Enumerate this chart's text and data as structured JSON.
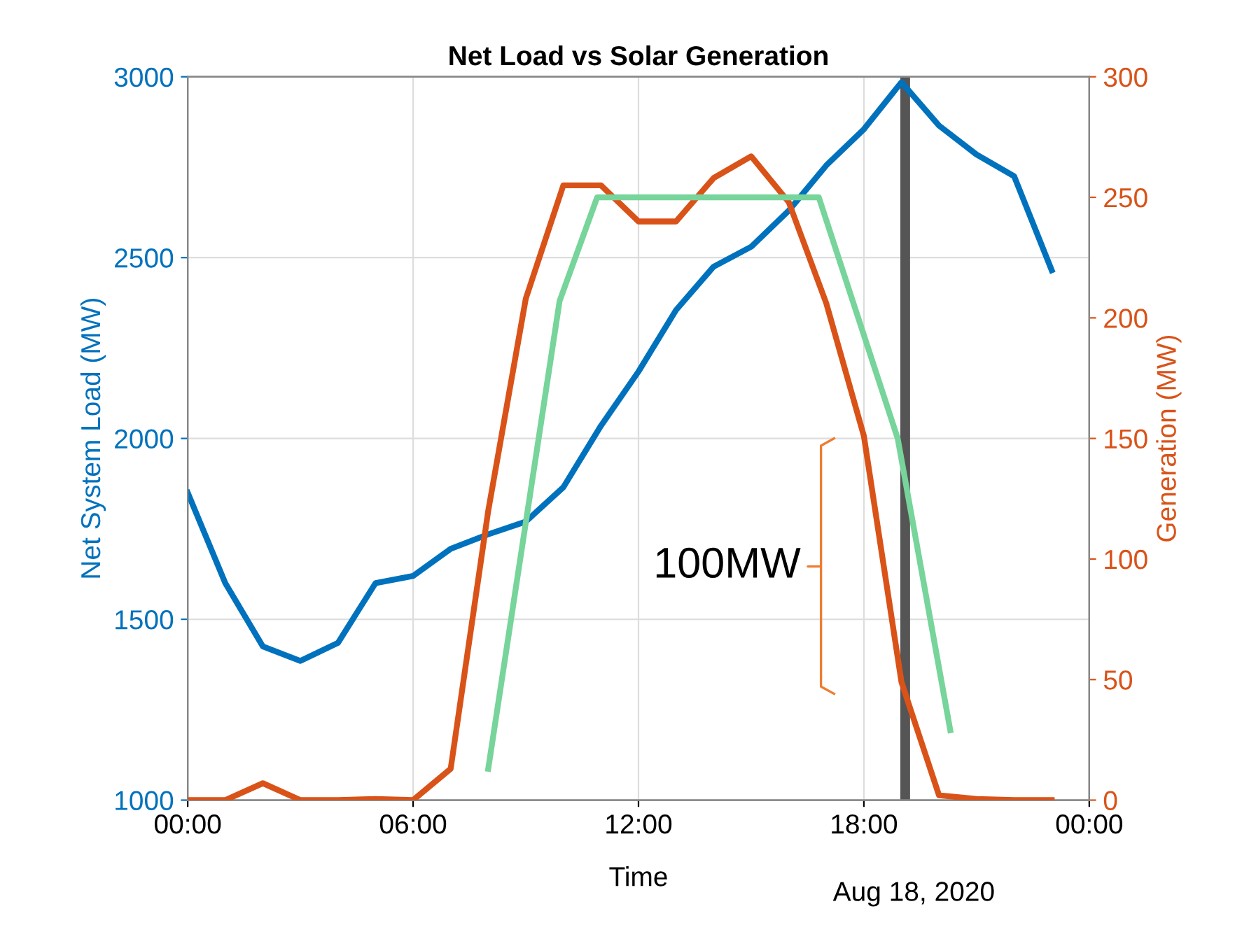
{
  "chart_data": {
    "type": "line",
    "title": "Net Load vs Solar Generation",
    "xlabel": "Time",
    "ylabel": "Net System Load (MW)",
    "y2label": "Generation (MW)",
    "x": [
      0,
      1,
      2,
      3,
      4,
      5,
      6,
      7,
      8,
      9,
      10,
      11,
      12,
      13,
      14,
      15,
      16,
      17,
      18,
      19,
      20,
      21,
      22,
      23
    ],
    "series": [
      {
        "color": "#0072bd",
        "values": [
          1850,
          1600,
          1425,
          1385,
          1435,
          1600,
          1620,
          1695,
          1735,
          1770,
          1865,
          2035,
          2185,
          2355,
          2475,
          2530,
          2630,
          2755,
          2855,
          2985,
          2865,
          2785,
          2725,
          2465
        ]
      },
      {
        "color": "#d95319",
        "axis": "y2",
        "values": [
          0,
          0,
          7,
          0,
          0,
          0.5,
          0,
          13,
          120,
          208,
          255,
          255,
          240,
          240,
          258,
          267,
          248,
          206,
          151,
          49,
          2,
          0.5,
          0,
          0
        ]
      },
      {
        "color": "#77d49a",
        "axis": "y2",
        "x": [
          8,
          9.9,
          10.9,
          16.8,
          18.9,
          20.3
        ],
        "values": [
          13,
          207,
          250,
          250,
          150,
          29
        ]
      }
    ],
    "xlim": [
      0,
      24
    ],
    "xticks": [
      {
        "value": 0,
        "label": "00:00"
      },
      {
        "value": 6,
        "label": "06:00"
      },
      {
        "value": 12,
        "label": "12:00"
      },
      {
        "value": 18,
        "label": "18:00"
      },
      {
        "value": 24,
        "label": "00:00"
      }
    ],
    "ylim": [
      1000,
      3000
    ],
    "yticks": [
      1000,
      1500,
      2000,
      2500,
      3000
    ],
    "y2lim": [
      0,
      300
    ],
    "y2ticks": [
      0,
      50,
      100,
      150,
      200,
      250,
      300
    ],
    "ref_lines": [
      {
        "axis": "x",
        "value": 19.1,
        "color": "#555555"
      }
    ],
    "annotations": [
      "100MW",
      "Aug 18, 2020"
    ],
    "grid": true,
    "legend": false,
    "marker": "none",
    "line_style": "solid"
  }
}
